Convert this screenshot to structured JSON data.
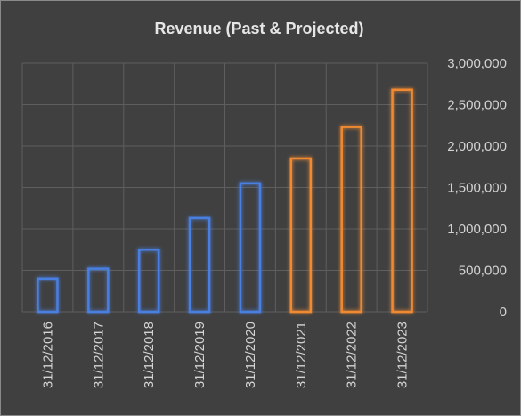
{
  "chart_data": {
    "type": "bar",
    "title": "Revenue (Past & Projected)",
    "xlabel": "",
    "ylabel": "",
    "categories": [
      "31/12/2016",
      "31/12/2017",
      "31/12/2018",
      "31/12/2019",
      "31/12/2020",
      "31/12/2021",
      "31/12/2022",
      "31/12/2023"
    ],
    "values": [
      400000,
      520000,
      750000,
      1130000,
      1550000,
      1850000,
      2230000,
      2680000
    ],
    "series_groups": [
      "past",
      "past",
      "past",
      "past",
      "past",
      "projected",
      "projected",
      "projected"
    ],
    "ylim": [
      0,
      3000000
    ],
    "yticks": [
      0,
      500000,
      1000000,
      1500000,
      2000000,
      2500000,
      3000000
    ],
    "ytick_labels": [
      "0",
      "500,000",
      "1,000,000",
      "1,500,000",
      "2,000,000",
      "2,500,000",
      "3,000,000"
    ],
    "y_axis_side": "right",
    "grid": true,
    "legend": "none",
    "colors": {
      "past": "#4a7fe0",
      "projected": "#f08a30",
      "background": "#404040",
      "grid": "#5e5e5e",
      "text": "#d4d4d4"
    }
  }
}
